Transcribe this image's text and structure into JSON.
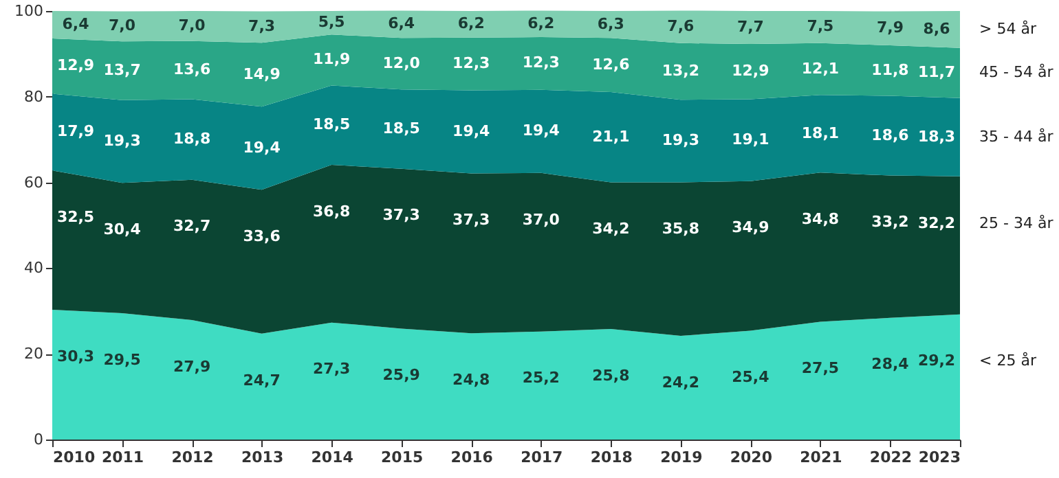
{
  "chart_data": {
    "type": "area",
    "stacked": true,
    "legend": "right",
    "x": [
      2010,
      2011,
      2012,
      2013,
      2014,
      2015,
      2016,
      2017,
      2018,
      2019,
      2020,
      2021,
      2022,
      2023
    ],
    "xlim": [
      2010,
      2023
    ],
    "xticks": [
      2010,
      2011,
      2012,
      2013,
      2014,
      2015,
      2016,
      2017,
      2018,
      2019,
      2020,
      2021,
      2022,
      2023
    ],
    "ylim": [
      0,
      100
    ],
    "yticks": [
      0,
      20,
      40,
      60,
      80,
      100
    ],
    "grid": false,
    "series": [
      {
        "name": "<  25 år",
        "color": "#3fdcc2",
        "values": [
          30.3,
          29.5,
          27.9,
          24.7,
          27.3,
          25.9,
          24.8,
          25.2,
          25.8,
          24.2,
          25.4,
          27.5,
          28.4,
          29.2
        ],
        "value_labels": [
          "30,3",
          "29,5",
          "27,9",
          "24,7",
          "27,3",
          "25,9",
          "24,8",
          "25,2",
          "25,8",
          "24,2",
          "25,4",
          "27,5",
          "28,4",
          "29,2"
        ]
      },
      {
        "name": "25 - 34 år",
        "color": "#0b4533",
        "values": [
          32.5,
          30.4,
          32.7,
          33.6,
          36.8,
          37.3,
          37.3,
          37.0,
          34.2,
          35.8,
          34.9,
          34.8,
          33.2,
          32.2
        ],
        "value_labels": [
          "32,5",
          "30,4",
          "32,7",
          "33,6",
          "36,8",
          "37,3",
          "37,3",
          "37,0",
          "34,2",
          "35,8",
          "34,9",
          "34,8",
          "33,2",
          "32,2"
        ]
      },
      {
        "name": "35 - 44 år",
        "color": "#078585",
        "values": [
          17.9,
          19.3,
          18.8,
          19.4,
          18.5,
          18.5,
          19.4,
          19.4,
          21.1,
          19.3,
          19.1,
          18.1,
          18.6,
          18.3
        ],
        "value_labels": [
          "17,9",
          "19,3",
          "18,8",
          "19,4",
          "18,5",
          "18,5",
          "19,4",
          "19,4",
          "21,1",
          "19,3",
          "19,1",
          "18,1",
          "18,6",
          "18,3"
        ]
      },
      {
        "name": "45 - 54 år",
        "color": "#2aa687",
        "values": [
          12.9,
          13.7,
          13.6,
          14.9,
          11.9,
          12.0,
          12.3,
          12.3,
          12.6,
          13.2,
          12.9,
          12.1,
          11.8,
          11.7
        ],
        "value_labels": [
          "12,9",
          "13,7",
          "13,6",
          "14,9",
          "11,9",
          "12,0",
          "12,3",
          "12,3",
          "12,6",
          "13,2",
          "12,9",
          "12,1",
          "11,8",
          "11,7"
        ]
      },
      {
        "name": ">  54 år",
        "color": "#7fcfb1",
        "values": [
          6.4,
          7.0,
          7.0,
          7.3,
          5.5,
          6.4,
          6.2,
          6.2,
          6.3,
          7.6,
          7.7,
          7.5,
          7.9,
          8.6
        ],
        "value_labels": [
          "6,4",
          "7,0",
          "7,0",
          "7,3",
          "5,5",
          "6,4",
          "6,2",
          "6,2",
          "6,3",
          "7,6",
          "7,7",
          "7,5",
          "7,9",
          "8,6"
        ]
      }
    ]
  }
}
